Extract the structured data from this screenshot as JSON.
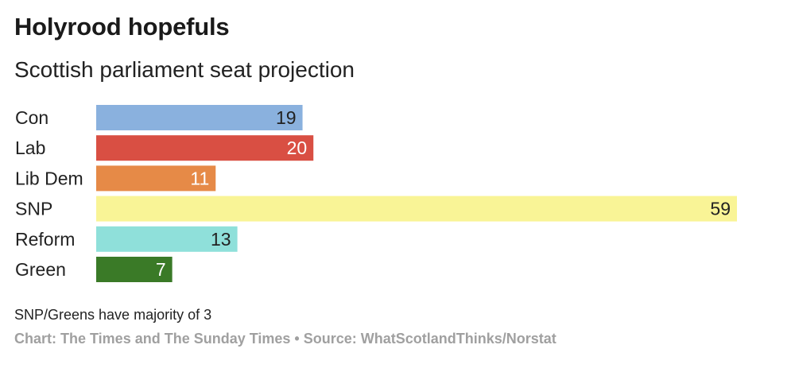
{
  "header": {
    "title": "Holyrood hopefuls",
    "subtitle": "Scottish parliament seat projection"
  },
  "footer": {
    "note": "SNP/Greens have majority of 3",
    "source": "Chart: The Times and The Sunday Times • Source: WhatScotlandThinks/Norstat"
  },
  "chart_data": {
    "type": "bar",
    "orientation": "horizontal",
    "title": "Holyrood hopefuls",
    "subtitle": "Scottish parliament seat projection",
    "categories": [
      "Con",
      "Lab",
      "Lib Dem",
      "SNP",
      "Reform",
      "Green"
    ],
    "values": [
      19,
      20,
      11,
      59,
      13,
      7
    ],
    "colors": [
      "#8ab1de",
      "#d94f43",
      "#e68a47",
      "#f9f496",
      "#8fe0da",
      "#3a7a27"
    ],
    "value_label_colors": [
      "#222222",
      "#ffffff",
      "#ffffff",
      "#222222",
      "#222222",
      "#ffffff"
    ],
    "xlim": [
      0,
      59
    ],
    "grid": false,
    "legend": "none"
  }
}
